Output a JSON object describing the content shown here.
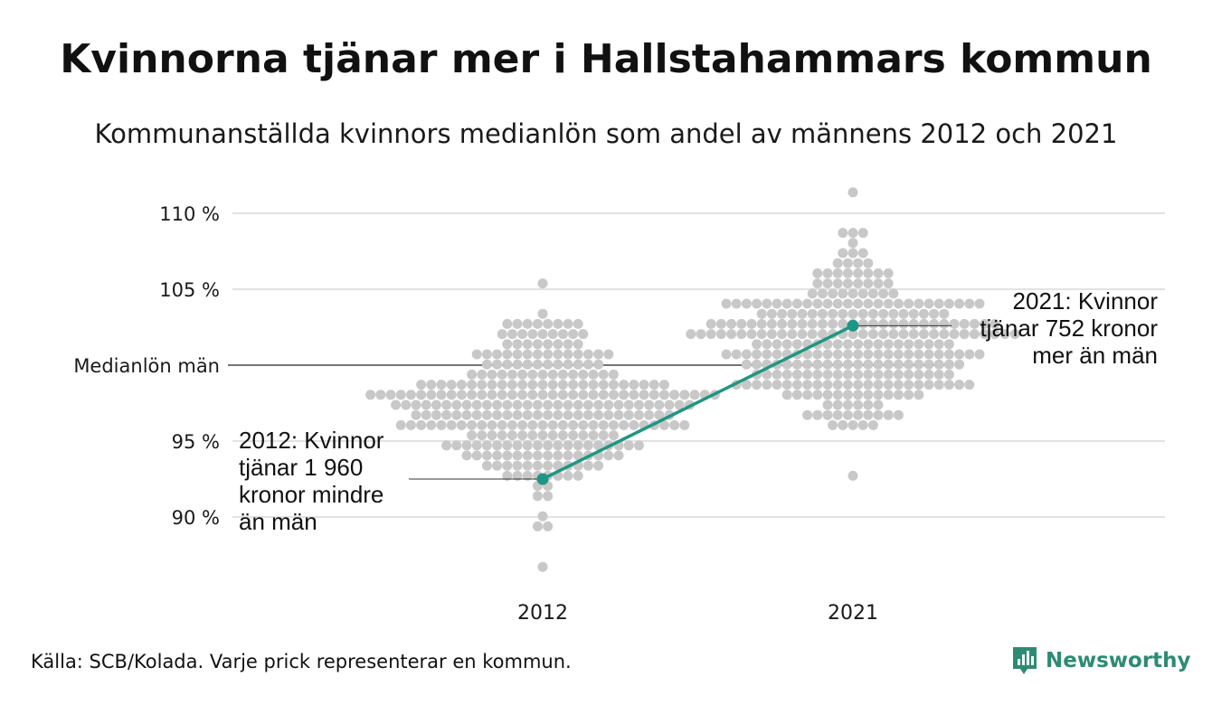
{
  "chart_data": {
    "type": "scatter",
    "title": "Kvinnorna tjänar mer i Hallstahammars kommun",
    "subtitle": "Kommunanställda kvinnors medianlön som andel av männens 2012 och 2021",
    "categories": [
      "2012",
      "2021"
    ],
    "y_ticks": [
      {
        "value": 90,
        "label": "90 %"
      },
      {
        "value": 95,
        "label": "95 %"
      },
      {
        "value": 100,
        "label": "Medianlön män"
      },
      {
        "value": 105,
        "label": "105 %"
      },
      {
        "value": 110,
        "label": "110 %"
      }
    ],
    "ylim": [
      85,
      112
    ],
    "grid": true,
    "distribution": [
      {
        "category": "2012",
        "center": 97,
        "spread": 2.8,
        "min": 86.5,
        "max": 105.3
      },
      {
        "category": "2021",
        "center": 101.5,
        "spread": 2.6,
        "min": 92.7,
        "max": 111.4
      }
    ],
    "highlight": {
      "name": "Hallstahammar",
      "color": "#1f9683",
      "points": [
        {
          "x": "2012",
          "y": 92.5
        },
        {
          "x": "2021",
          "y": 102.6
        }
      ]
    },
    "annotations": [
      {
        "category": "2012",
        "lines": [
          "2012: Kvinnor",
          "tjänar 1 960",
          "kronor mindre",
          "än män"
        ]
      },
      {
        "category": "2021",
        "lines": [
          "2021: Kvinnor",
          "tjänar 752 kronor",
          "mer än män"
        ]
      }
    ],
    "dot_color": "#c8c8c8"
  },
  "footer": {
    "source": "Källa: SCB/Kolada. Varje prick representerar en kommun.",
    "brand": "Newsworthy",
    "brand_color": "#2e8b73"
  }
}
